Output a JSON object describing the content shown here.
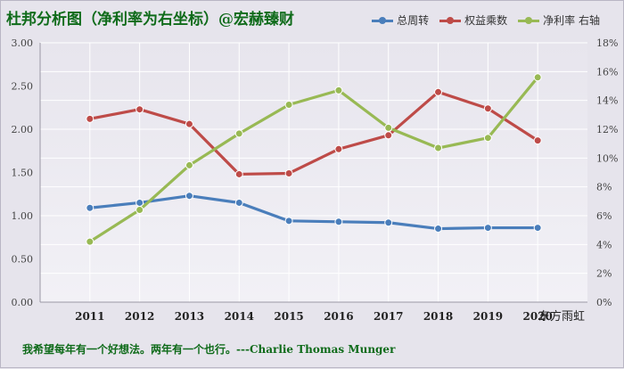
{
  "header": {
    "title": "杜邦分析图（净利率为右坐标）@宏赫臻财"
  },
  "watermark": "东方雨虹",
  "footer": {
    "quote": "我希望每年有一个好想法。两年有一个也行。---Charlie Thomas  Munger"
  },
  "chart_data": {
    "type": "line",
    "categories": [
      "2011",
      "2012",
      "2013",
      "2014",
      "2015",
      "2016",
      "2017",
      "2018",
      "2019",
      "2020"
    ],
    "y_left": {
      "min": 0,
      "max": 3.0,
      "ticks": [
        "0.00",
        "0.50",
        "1.00",
        "1.50",
        "2.00",
        "2.50",
        "3.00"
      ]
    },
    "y_right": {
      "min": 0,
      "max": 18,
      "ticks": [
        "0%",
        "2%",
        "4%",
        "6%",
        "8%",
        "10%",
        "12%",
        "14%",
        "16%",
        "18%"
      ]
    },
    "grid": true,
    "legend_position": "top-right",
    "series": [
      {
        "name": "总周转",
        "axis": "left",
        "color": "#4a7ebb",
        "values": [
          1.09,
          1.15,
          1.23,
          1.15,
          0.94,
          0.93,
          0.92,
          0.85,
          0.86,
          0.86
        ]
      },
      {
        "name": "权益乘数",
        "axis": "left",
        "color": "#be4b48",
        "values": [
          2.12,
          2.23,
          2.06,
          1.48,
          1.49,
          1.77,
          1.93,
          2.43,
          2.24,
          1.87
        ]
      },
      {
        "name": "净利率 右轴",
        "axis": "right",
        "color": "#98b954",
        "values": [
          4.2,
          6.4,
          9.5,
          11.7,
          13.7,
          14.7,
          12.1,
          10.7,
          11.4,
          15.6
        ]
      }
    ]
  }
}
